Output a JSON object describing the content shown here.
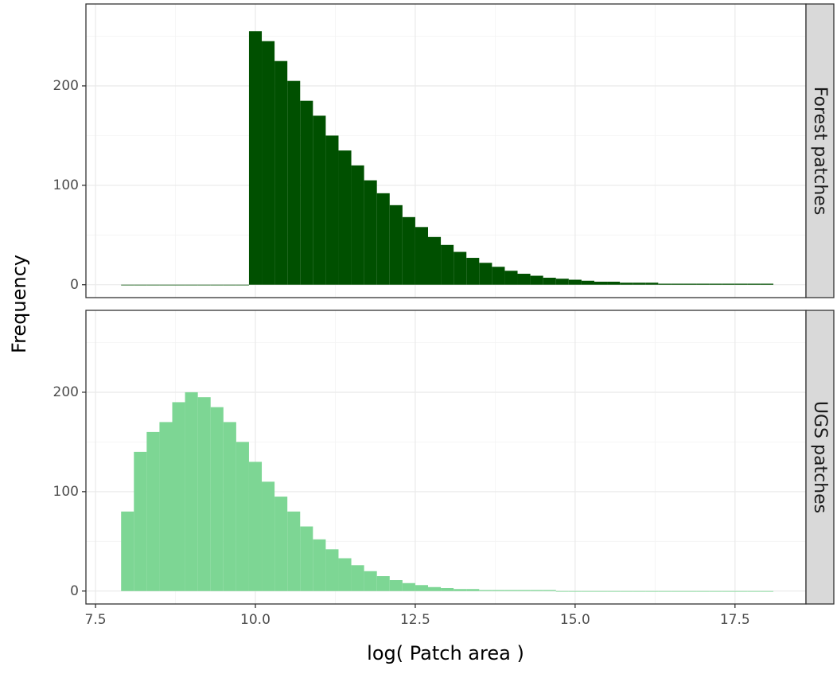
{
  "chart_data": {
    "type": "histogram",
    "xlabel": "log( Patch area )",
    "ylabel": "Frequency",
    "xlim": [
      7.35,
      18.61
    ],
    "ylim": [
      -13,
      282.4
    ],
    "xticks": [
      7.5,
      {
        "value": 10,
        "label": "10.0"
      },
      12.5,
      {
        "value": 15,
        "label": "15.0"
      },
      17.5
    ],
    "yticks": [
      0,
      100,
      200
    ],
    "xminor_ticks": [
      8.75,
      11.25,
      13.75,
      16.25
    ],
    "yminor_ticks": [
      50,
      150,
      250
    ],
    "grid": true,
    "bins": [
      7.9,
      8.1,
      8.3,
      8.5,
      8.7,
      8.9,
      9.1,
      9.3,
      9.5,
      9.7,
      9.9,
      10.1,
      10.3,
      10.5,
      10.7,
      10.9,
      11.1,
      11.3,
      11.5,
      11.7,
      11.9,
      12.1,
      12.3,
      12.5,
      12.7,
      12.9,
      13.1,
      13.3,
      13.5,
      13.7,
      13.9,
      14.1,
      14.3,
      14.5,
      14.7,
      14.9,
      15.1,
      15.3,
      15.5,
      15.7,
      15.9,
      16.1,
      16.3,
      16.5,
      16.7,
      16.9,
      17.1,
      17.3,
      17.5,
      17.7,
      17.9,
      18.1
    ],
    "series": [
      {
        "name": "Forest patches",
        "color": "#005000",
        "values": [
          0,
          0,
          0,
          0,
          0,
          0,
          0,
          0,
          0,
          0,
          255,
          245,
          225,
          205,
          185,
          170,
          150,
          135,
          120,
          105,
          92,
          80,
          68,
          58,
          48,
          40,
          33,
          27,
          22,
          18,
          14,
          11,
          9,
          7,
          6,
          5,
          4,
          3,
          3,
          2,
          2,
          2,
          1,
          1,
          1,
          1,
          1,
          1,
          1,
          1,
          1
        ]
      },
      {
        "name": "UGS patches",
        "color": "#7dd694",
        "values": [
          80,
          140,
          160,
          170,
          190,
          200,
          195,
          185,
          170,
          150,
          130,
          110,
          95,
          80,
          65,
          52,
          42,
          33,
          26,
          20,
          15,
          11,
          8,
          6,
          4,
          3,
          2,
          2,
          1,
          1,
          1,
          1,
          1,
          1,
          0,
          0,
          0,
          0,
          0,
          0,
          0,
          0,
          0,
          0,
          0,
          0,
          0,
          0,
          0,
          0,
          0
        ]
      }
    ]
  }
}
